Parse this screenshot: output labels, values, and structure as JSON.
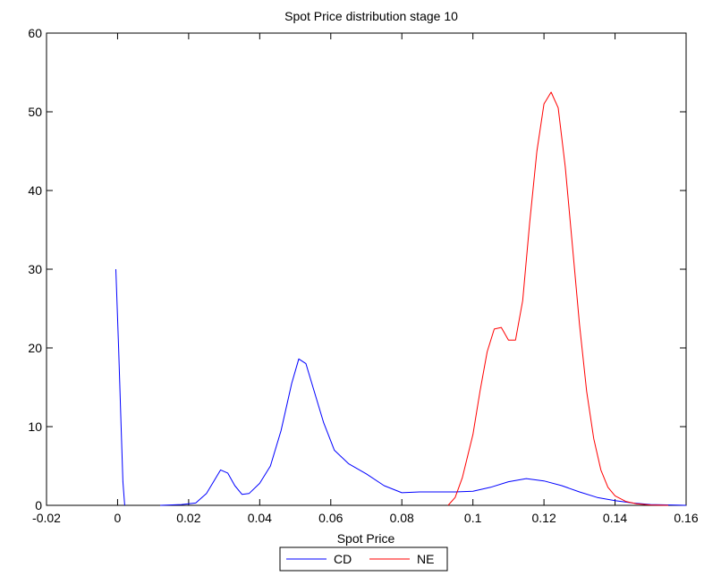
{
  "chart_data": {
    "type": "line",
    "title": "Spot Price distribution stage 10",
    "xlabel": "Spot Price",
    "ylabel": "",
    "xlim": [
      -0.02,
      0.16
    ],
    "ylim": [
      0,
      60
    ],
    "xticks": [
      -0.02,
      0,
      0.02,
      0.04,
      0.06,
      0.08,
      0.1,
      0.12,
      0.14,
      0.16
    ],
    "xtick_labels": [
      "-0.02",
      "0",
      "0.02",
      "0.04",
      "0.06",
      "0.08",
      "0.1",
      "0.12",
      "0.14",
      "0.16"
    ],
    "yticks": [
      0,
      10,
      20,
      30,
      40,
      50,
      60
    ],
    "ytick_labels": [
      "0",
      "10",
      "20",
      "30",
      "40",
      "50",
      "60"
    ],
    "grid": false,
    "legend_placement": "bottom-center-outside",
    "series": [
      {
        "name": "CD",
        "color": "#0000ff",
        "segments": [
          [
            [
              -0.0005,
              30
            ],
            [
              0.0003,
              20
            ],
            [
              0.001,
              10
            ],
            [
              0.0015,
              3
            ],
            [
              0.002,
              0
            ]
          ],
          [
            [
              0.012,
              0
            ],
            [
              0.018,
              0.1
            ],
            [
              0.022,
              0.3
            ],
            [
              0.025,
              1.5
            ],
            [
              0.027,
              3.0
            ],
            [
              0.029,
              4.5
            ],
            [
              0.031,
              4.1
            ],
            [
              0.033,
              2.5
            ],
            [
              0.035,
              1.4
            ],
            [
              0.037,
              1.5
            ],
            [
              0.04,
              2.8
            ],
            [
              0.043,
              5.0
            ],
            [
              0.046,
              9.5
            ],
            [
              0.049,
              15.5
            ],
            [
              0.051,
              18.6
            ],
            [
              0.053,
              18.0
            ],
            [
              0.055,
              15.0
            ],
            [
              0.058,
              10.5
            ],
            [
              0.061,
              7.0
            ],
            [
              0.065,
              5.3
            ],
            [
              0.07,
              4.0
            ],
            [
              0.075,
              2.5
            ],
            [
              0.08,
              1.6
            ],
            [
              0.085,
              1.7
            ],
            [
              0.09,
              1.7
            ],
            [
              0.095,
              1.7
            ],
            [
              0.1,
              1.8
            ],
            [
              0.105,
              2.3
            ],
            [
              0.11,
              3.0
            ],
            [
              0.115,
              3.4
            ],
            [
              0.12,
              3.1
            ],
            [
              0.125,
              2.5
            ],
            [
              0.13,
              1.7
            ],
            [
              0.135,
              1.0
            ],
            [
              0.14,
              0.6
            ],
            [
              0.145,
              0.3
            ],
            [
              0.15,
              0.1
            ],
            [
              0.16,
              0.0
            ]
          ]
        ]
      },
      {
        "name": "NE",
        "color": "#ff0000",
        "segments": [
          [
            [
              0.093,
              0
            ],
            [
              0.095,
              1.0
            ],
            [
              0.097,
              3.5
            ],
            [
              0.1,
              9.0
            ],
            [
              0.102,
              14.5
            ],
            [
              0.104,
              19.5
            ],
            [
              0.106,
              22.4
            ],
            [
              0.108,
              22.6
            ],
            [
              0.11,
              21.0
            ],
            [
              0.112,
              21.0
            ],
            [
              0.114,
              26.0
            ],
            [
              0.116,
              36.0
            ],
            [
              0.118,
              45.0
            ],
            [
              0.12,
              51.0
            ],
            [
              0.122,
              52.5
            ],
            [
              0.124,
              50.5
            ],
            [
              0.126,
              43.0
            ],
            [
              0.128,
              33.0
            ],
            [
              0.13,
              23.0
            ],
            [
              0.132,
              14.5
            ],
            [
              0.134,
              8.5
            ],
            [
              0.136,
              4.5
            ],
            [
              0.138,
              2.3
            ],
            [
              0.14,
              1.2
            ],
            [
              0.143,
              0.5
            ],
            [
              0.146,
              0.2
            ],
            [
              0.15,
              0.05
            ],
            [
              0.155,
              0.0
            ]
          ]
        ]
      }
    ]
  }
}
